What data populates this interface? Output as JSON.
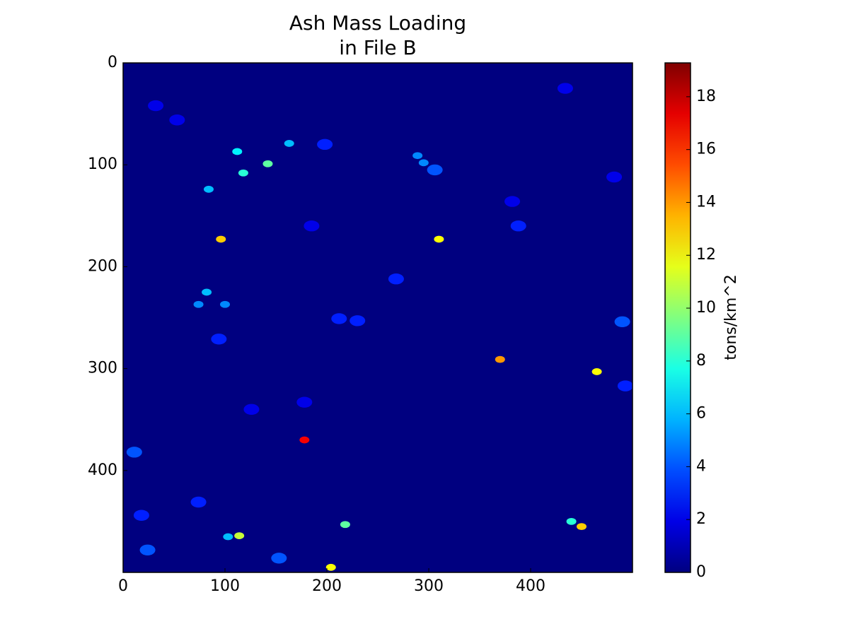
{
  "chart_data": {
    "type": "heatmap",
    "title": [
      "Ash Mass Loading",
      "in File B"
    ],
    "colorbar_label": "tons/km^2",
    "xlim": [
      0,
      500
    ],
    "ylim": [
      500,
      0
    ],
    "xticks": [
      0,
      100,
      200,
      300,
      400
    ],
    "yticks": [
      0,
      100,
      200,
      300,
      400
    ],
    "clim": [
      0,
      19.28
    ],
    "cticks": [
      0,
      2,
      4,
      6,
      8,
      10,
      12,
      14,
      16,
      18
    ],
    "colormap": "jet",
    "points": [
      [
        126,
        340,
        2
      ],
      [
        178,
        333,
        2
      ],
      [
        32,
        42,
        2
      ],
      [
        53,
        56,
        2
      ],
      [
        482,
        112,
        2
      ],
      [
        434,
        25,
        2
      ],
      [
        382,
        136,
        2
      ],
      [
        185,
        160,
        2
      ],
      [
        18,
        444,
        3
      ],
      [
        388,
        160,
        3
      ],
      [
        230,
        253,
        3
      ],
      [
        212,
        251,
        3
      ],
      [
        94,
        271,
        3
      ],
      [
        268,
        212,
        3
      ],
      [
        493,
        317,
        3
      ],
      [
        74,
        431,
        3
      ],
      [
        198,
        80,
        3
      ],
      [
        24,
        478,
        4
      ],
      [
        11,
        382,
        4
      ],
      [
        153,
        486,
        4
      ],
      [
        490,
        254,
        4
      ],
      [
        306,
        105,
        4
      ],
      [
        289,
        91,
        5
      ],
      [
        295,
        98,
        5
      ],
      [
        74,
        237,
        5
      ],
      [
        100,
        237,
        5
      ],
      [
        82,
        225,
        6
      ],
      [
        84,
        124,
        6
      ],
      [
        163,
        79,
        6
      ],
      [
        103,
        465,
        6
      ],
      [
        112,
        87,
        7
      ],
      [
        118,
        108,
        8
      ],
      [
        440,
        450,
        8
      ],
      [
        142,
        99,
        9
      ],
      [
        218,
        453,
        9
      ],
      [
        114,
        464,
        11
      ],
      [
        465,
        303,
        12
      ],
      [
        204,
        495,
        12
      ],
      [
        310,
        173,
        12
      ],
      [
        96,
        173,
        13
      ],
      [
        450,
        455,
        13
      ],
      [
        370,
        291,
        14
      ],
      [
        178,
        370,
        17
      ]
    ]
  }
}
